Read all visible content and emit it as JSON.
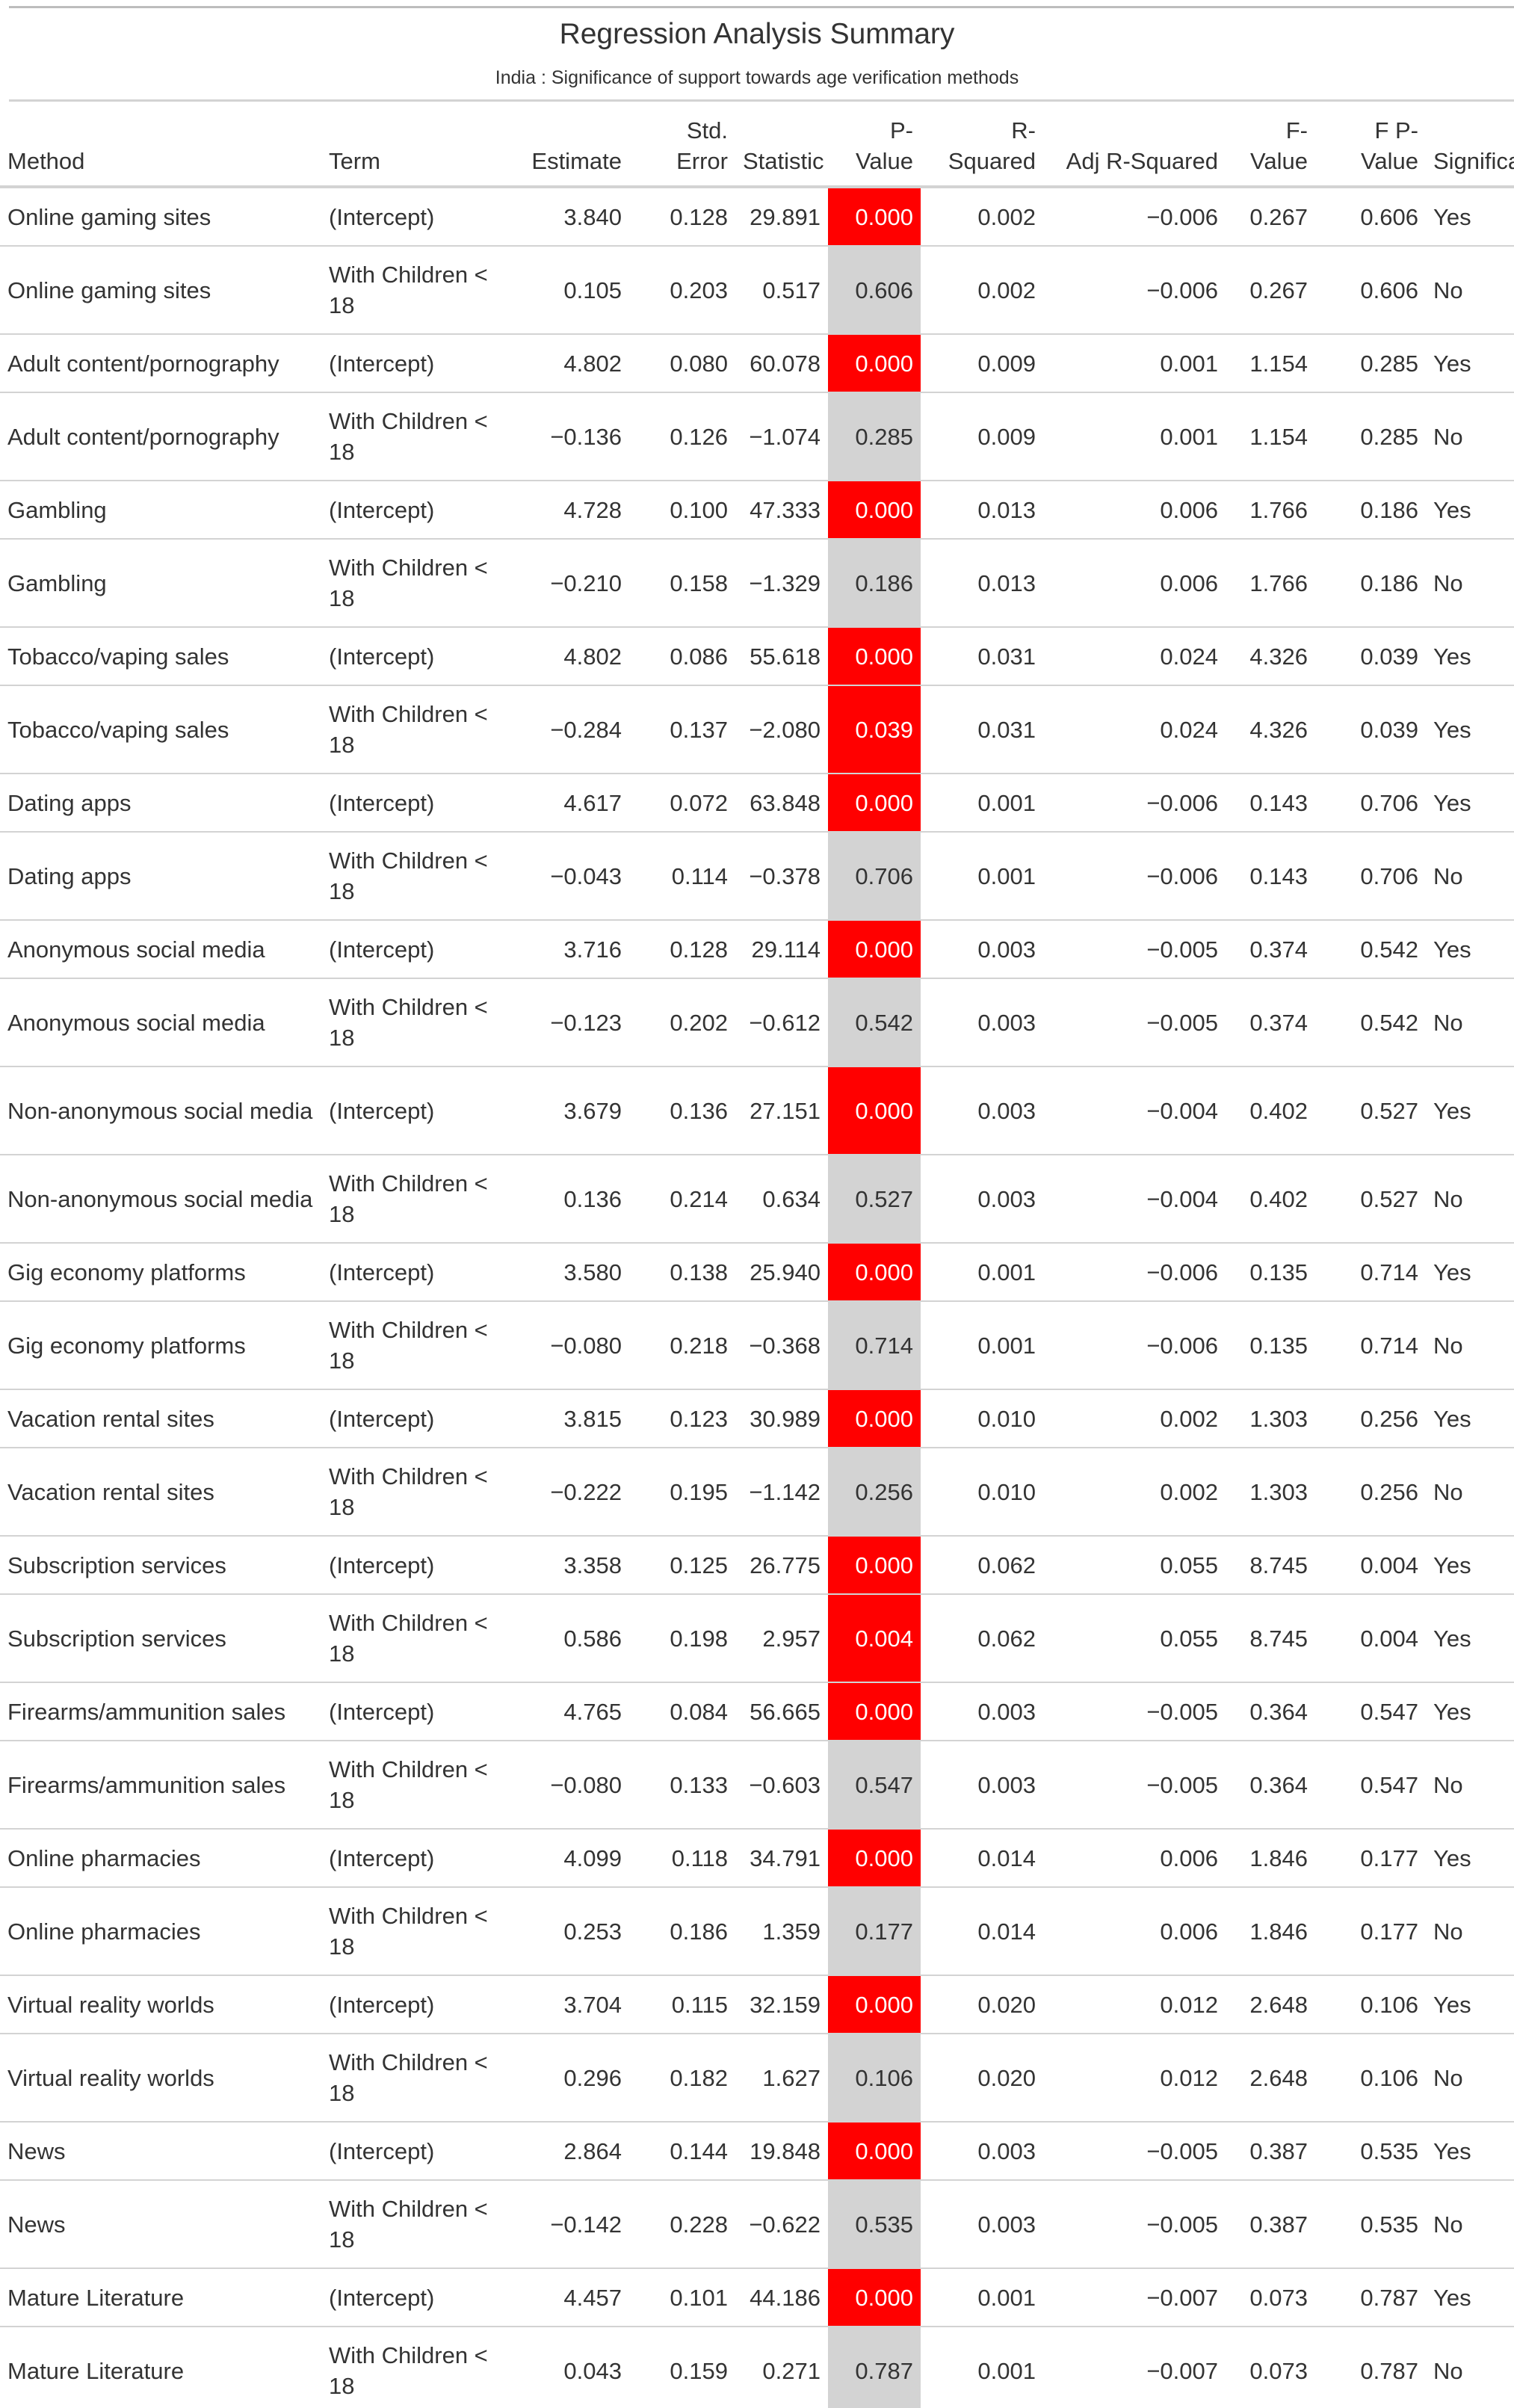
{
  "title": "Regression Analysis Summary",
  "subtitle": "India : Significance of support towards age verification methods",
  "columns": [
    "Method",
    "Term",
    "Estimate",
    "Std. Error",
    "Statistic",
    "P-Value",
    "R-Squared",
    "Adj R-Squared",
    "F-Value",
    "F P-Value",
    "Significant"
  ],
  "colors": {
    "significant_p": "#ff0000",
    "nonsignificant_p": "#d3d3d3"
  },
  "rows": [
    {
      "method": "Online gaming sites",
      "term": "(Intercept)",
      "estimate": "3.840",
      "std_error": "0.128",
      "statistic": "29.891",
      "p_value": "0.000",
      "r_squared": "0.002",
      "adj_r_squared": "−0.006",
      "f_value": "0.267",
      "f_p_value": "0.606",
      "significant": "Yes"
    },
    {
      "method": "Online gaming sites",
      "term": "With Children < 18",
      "estimate": "0.105",
      "std_error": "0.203",
      "statistic": "0.517",
      "p_value": "0.606",
      "r_squared": "0.002",
      "adj_r_squared": "−0.006",
      "f_value": "0.267",
      "f_p_value": "0.606",
      "significant": "No"
    },
    {
      "method": "Adult content/pornography",
      "term": "(Intercept)",
      "estimate": "4.802",
      "std_error": "0.080",
      "statistic": "60.078",
      "p_value": "0.000",
      "r_squared": "0.009",
      "adj_r_squared": "0.001",
      "f_value": "1.154",
      "f_p_value": "0.285",
      "significant": "Yes"
    },
    {
      "method": "Adult content/pornography",
      "term": "With Children < 18",
      "estimate": "−0.136",
      "std_error": "0.126",
      "statistic": "−1.074",
      "p_value": "0.285",
      "r_squared": "0.009",
      "adj_r_squared": "0.001",
      "f_value": "1.154",
      "f_p_value": "0.285",
      "significant": "No"
    },
    {
      "method": "Gambling",
      "term": "(Intercept)",
      "estimate": "4.728",
      "std_error": "0.100",
      "statistic": "47.333",
      "p_value": "0.000",
      "r_squared": "0.013",
      "adj_r_squared": "0.006",
      "f_value": "1.766",
      "f_p_value": "0.186",
      "significant": "Yes"
    },
    {
      "method": "Gambling",
      "term": "With Children < 18",
      "estimate": "−0.210",
      "std_error": "0.158",
      "statistic": "−1.329",
      "p_value": "0.186",
      "r_squared": "0.013",
      "adj_r_squared": "0.006",
      "f_value": "1.766",
      "f_p_value": "0.186",
      "significant": "No"
    },
    {
      "method": "Tobacco/vaping sales",
      "term": "(Intercept)",
      "estimate": "4.802",
      "std_error": "0.086",
      "statistic": "55.618",
      "p_value": "0.000",
      "r_squared": "0.031",
      "adj_r_squared": "0.024",
      "f_value": "4.326",
      "f_p_value": "0.039",
      "significant": "Yes"
    },
    {
      "method": "Tobacco/vaping sales",
      "term": "With Children < 18",
      "estimate": "−0.284",
      "std_error": "0.137",
      "statistic": "−2.080",
      "p_value": "0.039",
      "r_squared": "0.031",
      "adj_r_squared": "0.024",
      "f_value": "4.326",
      "f_p_value": "0.039",
      "significant": "Yes"
    },
    {
      "method": "Dating apps",
      "term": "(Intercept)",
      "estimate": "4.617",
      "std_error": "0.072",
      "statistic": "63.848",
      "p_value": "0.000",
      "r_squared": "0.001",
      "adj_r_squared": "−0.006",
      "f_value": "0.143",
      "f_p_value": "0.706",
      "significant": "Yes"
    },
    {
      "method": "Dating apps",
      "term": "With Children < 18",
      "estimate": "−0.043",
      "std_error": "0.114",
      "statistic": "−0.378",
      "p_value": "0.706",
      "r_squared": "0.001",
      "adj_r_squared": "−0.006",
      "f_value": "0.143",
      "f_p_value": "0.706",
      "significant": "No"
    },
    {
      "method": "Anonymous social media",
      "term": "(Intercept)",
      "estimate": "3.716",
      "std_error": "0.128",
      "statistic": "29.114",
      "p_value": "0.000",
      "r_squared": "0.003",
      "adj_r_squared": "−0.005",
      "f_value": "0.374",
      "f_p_value": "0.542",
      "significant": "Yes"
    },
    {
      "method": "Anonymous social media",
      "term": "With Children < 18",
      "estimate": "−0.123",
      "std_error": "0.202",
      "statistic": "−0.612",
      "p_value": "0.542",
      "r_squared": "0.003",
      "adj_r_squared": "−0.005",
      "f_value": "0.374",
      "f_p_value": "0.542",
      "significant": "No"
    },
    {
      "method": "Non-anonymous social media",
      "term": "(Intercept)",
      "estimate": "3.679",
      "std_error": "0.136",
      "statistic": "27.151",
      "p_value": "0.000",
      "r_squared": "0.003",
      "adj_r_squared": "−0.004",
      "f_value": "0.402",
      "f_p_value": "0.527",
      "significant": "Yes"
    },
    {
      "method": "Non-anonymous social media",
      "term": "With Children < 18",
      "estimate": "0.136",
      "std_error": "0.214",
      "statistic": "0.634",
      "p_value": "0.527",
      "r_squared": "0.003",
      "adj_r_squared": "−0.004",
      "f_value": "0.402",
      "f_p_value": "0.527",
      "significant": "No"
    },
    {
      "method": "Gig economy platforms",
      "term": "(Intercept)",
      "estimate": "3.580",
      "std_error": "0.138",
      "statistic": "25.940",
      "p_value": "0.000",
      "r_squared": "0.001",
      "adj_r_squared": "−0.006",
      "f_value": "0.135",
      "f_p_value": "0.714",
      "significant": "Yes"
    },
    {
      "method": "Gig economy platforms",
      "term": "With Children < 18",
      "estimate": "−0.080",
      "std_error": "0.218",
      "statistic": "−0.368",
      "p_value": "0.714",
      "r_squared": "0.001",
      "adj_r_squared": "−0.006",
      "f_value": "0.135",
      "f_p_value": "0.714",
      "significant": "No"
    },
    {
      "method": "Vacation rental sites",
      "term": "(Intercept)",
      "estimate": "3.815",
      "std_error": "0.123",
      "statistic": "30.989",
      "p_value": "0.000",
      "r_squared": "0.010",
      "adj_r_squared": "0.002",
      "f_value": "1.303",
      "f_p_value": "0.256",
      "significant": "Yes"
    },
    {
      "method": "Vacation rental sites",
      "term": "With Children < 18",
      "estimate": "−0.222",
      "std_error": "0.195",
      "statistic": "−1.142",
      "p_value": "0.256",
      "r_squared": "0.010",
      "adj_r_squared": "0.002",
      "f_value": "1.303",
      "f_p_value": "0.256",
      "significant": "No"
    },
    {
      "method": "Subscription services",
      "term": "(Intercept)",
      "estimate": "3.358",
      "std_error": "0.125",
      "statistic": "26.775",
      "p_value": "0.000",
      "r_squared": "0.062",
      "adj_r_squared": "0.055",
      "f_value": "8.745",
      "f_p_value": "0.004",
      "significant": "Yes"
    },
    {
      "method": "Subscription services",
      "term": "With Children < 18",
      "estimate": "0.586",
      "std_error": "0.198",
      "statistic": "2.957",
      "p_value": "0.004",
      "r_squared": "0.062",
      "adj_r_squared": "0.055",
      "f_value": "8.745",
      "f_p_value": "0.004",
      "significant": "Yes"
    },
    {
      "method": "Firearms/ammunition sales",
      "term": "(Intercept)",
      "estimate": "4.765",
      "std_error": "0.084",
      "statistic": "56.665",
      "p_value": "0.000",
      "r_squared": "0.003",
      "adj_r_squared": "−0.005",
      "f_value": "0.364",
      "f_p_value": "0.547",
      "significant": "Yes"
    },
    {
      "method": "Firearms/ammunition sales",
      "term": "With Children < 18",
      "estimate": "−0.080",
      "std_error": "0.133",
      "statistic": "−0.603",
      "p_value": "0.547",
      "r_squared": "0.003",
      "adj_r_squared": "−0.005",
      "f_value": "0.364",
      "f_p_value": "0.547",
      "significant": "No"
    },
    {
      "method": "Online pharmacies",
      "term": "(Intercept)",
      "estimate": "4.099",
      "std_error": "0.118",
      "statistic": "34.791",
      "p_value": "0.000",
      "r_squared": "0.014",
      "adj_r_squared": "0.006",
      "f_value": "1.846",
      "f_p_value": "0.177",
      "significant": "Yes"
    },
    {
      "method": "Online pharmacies",
      "term": "With Children < 18",
      "estimate": "0.253",
      "std_error": "0.186",
      "statistic": "1.359",
      "p_value": "0.177",
      "r_squared": "0.014",
      "adj_r_squared": "0.006",
      "f_value": "1.846",
      "f_p_value": "0.177",
      "significant": "No"
    },
    {
      "method": "Virtual reality worlds",
      "term": "(Intercept)",
      "estimate": "3.704",
      "std_error": "0.115",
      "statistic": "32.159",
      "p_value": "0.000",
      "r_squared": "0.020",
      "adj_r_squared": "0.012",
      "f_value": "2.648",
      "f_p_value": "0.106",
      "significant": "Yes"
    },
    {
      "method": "Virtual reality worlds",
      "term": "With Children < 18",
      "estimate": "0.296",
      "std_error": "0.182",
      "statistic": "1.627",
      "p_value": "0.106",
      "r_squared": "0.020",
      "adj_r_squared": "0.012",
      "f_value": "2.648",
      "f_p_value": "0.106",
      "significant": "No"
    },
    {
      "method": "News",
      "term": "(Intercept)",
      "estimate": "2.864",
      "std_error": "0.144",
      "statistic": "19.848",
      "p_value": "0.000",
      "r_squared": "0.003",
      "adj_r_squared": "−0.005",
      "f_value": "0.387",
      "f_p_value": "0.535",
      "significant": "Yes"
    },
    {
      "method": "News",
      "term": "With Children < 18",
      "estimate": "−0.142",
      "std_error": "0.228",
      "statistic": "−0.622",
      "p_value": "0.535",
      "r_squared": "0.003",
      "adj_r_squared": "−0.005",
      "f_value": "0.387",
      "f_p_value": "0.535",
      "significant": "No"
    },
    {
      "method": "Mature Literature",
      "term": "(Intercept)",
      "estimate": "4.457",
      "std_error": "0.101",
      "statistic": "44.186",
      "p_value": "0.000",
      "r_squared": "0.001",
      "adj_r_squared": "−0.007",
      "f_value": "0.073",
      "f_p_value": "0.787",
      "significant": "Yes"
    },
    {
      "method": "Mature Literature",
      "term": "With Children < 18",
      "estimate": "0.043",
      "std_error": "0.159",
      "statistic": "0.271",
      "p_value": "0.787",
      "r_squared": "0.001",
      "adj_r_squared": "−0.007",
      "f_value": "0.073",
      "f_p_value": "0.787",
      "significant": "No"
    }
  ]
}
